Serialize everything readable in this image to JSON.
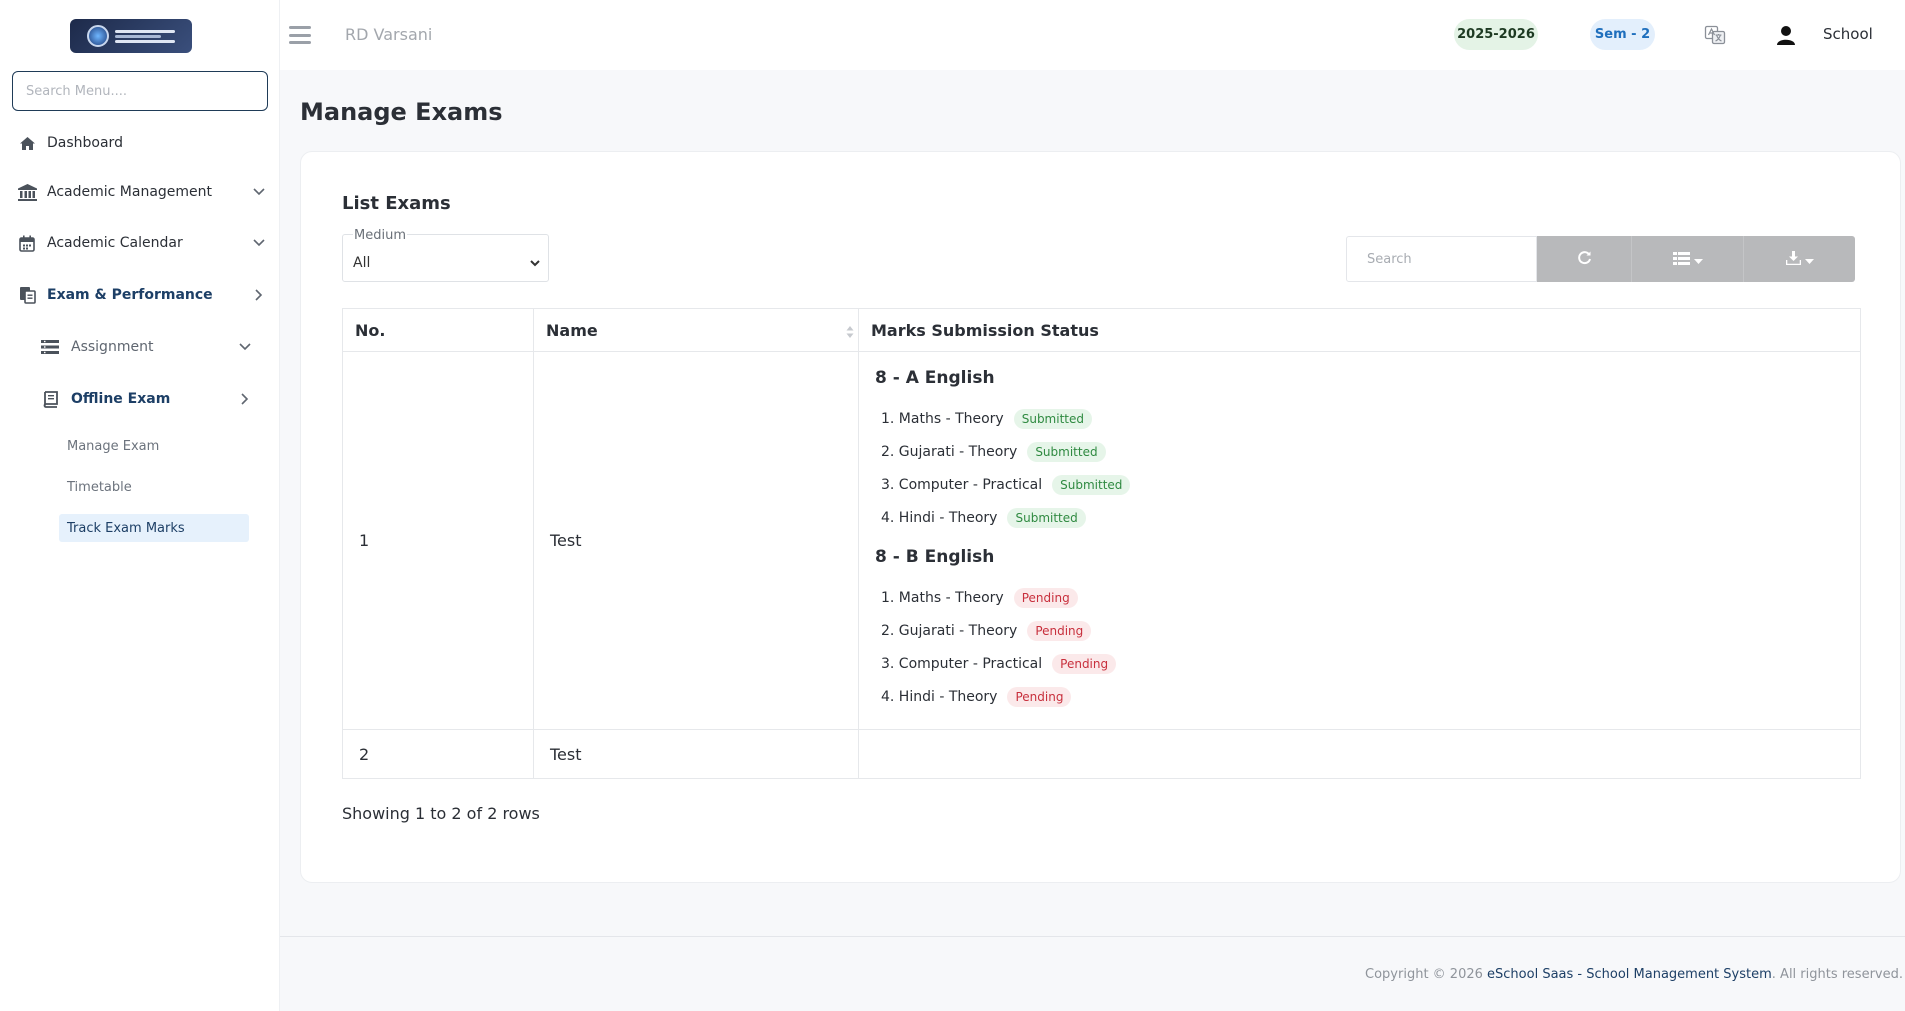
{
  "sidebar": {
    "search_placeholder": "Search Menu....",
    "items": [
      {
        "label": "Dashboard",
        "icon": "home-icon"
      },
      {
        "label": "Academic Management",
        "icon": "bank-icon"
      },
      {
        "label": "Academic Calendar",
        "icon": "calendar-icon"
      },
      {
        "label": "Exam & Performance",
        "icon": "exam-icon"
      }
    ],
    "sub_items": [
      {
        "label": "Assignment",
        "icon": "list-icon"
      },
      {
        "label": "Offline Exam",
        "icon": "book-icon"
      }
    ],
    "leaf_items": [
      {
        "label": "Manage Exam"
      },
      {
        "label": "Timetable"
      },
      {
        "label": "Track Exam Marks"
      }
    ]
  },
  "topbar": {
    "school_name": "RD Varsani",
    "session": "2025-2026",
    "semester": "Sem - 2",
    "user_label": "School"
  },
  "page": {
    "title": "Manage Exams"
  },
  "card": {
    "title": "List Exams",
    "medium_label": "Medium",
    "medium_value": "All",
    "search_placeholder": "Search"
  },
  "table": {
    "headers": [
      "No.",
      "Name",
      "Marks Submission Status"
    ],
    "rows": [
      {
        "no": "1",
        "name": "Test",
        "groups": [
          {
            "title": "8 - A English",
            "subjects": [
              {
                "label": "1. Maths - Theory",
                "status": "Submitted"
              },
              {
                "label": "2. Gujarati - Theory",
                "status": "Submitted"
              },
              {
                "label": "3. Computer - Practical",
                "status": "Submitted"
              },
              {
                "label": "4. Hindi - Theory",
                "status": "Submitted"
              }
            ]
          },
          {
            "title": "8 - B English",
            "subjects": [
              {
                "label": "1. Maths - Theory",
                "status": "Pending"
              },
              {
                "label": "2. Gujarati - Theory",
                "status": "Pending"
              },
              {
                "label": "3. Computer - Practical",
                "status": "Pending"
              },
              {
                "label": "4. Hindi - Theory",
                "status": "Pending"
              }
            ]
          }
        ]
      },
      {
        "no": "2",
        "name": "Test"
      }
    ],
    "pagination_info": "Showing 1 to 2 of 2 rows"
  },
  "footer": {
    "prefix": "Copyright © 2026 ",
    "brand": "eSchool Saas - School Management System",
    "suffix": ". All rights reserved."
  },
  "colors": {
    "accent": "#1d3f66",
    "submitted_bg": "#e6f5e9",
    "submitted_text": "#2f8a41",
    "pending_bg": "#fbe9ea",
    "pending_text": "#c8303d",
    "session_pill": "#e4f3e6",
    "semester_pill": "#e3effc"
  }
}
